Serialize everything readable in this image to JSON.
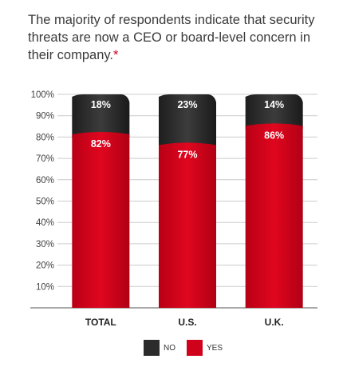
{
  "title": "The majority of respondents indicate that security threats are now a CEO or board-level concern in their company.",
  "title_mark": "*",
  "chart_data": {
    "type": "bar",
    "stacked": true,
    "categories": [
      "TOTAL",
      "U.S.",
      "U.K."
    ],
    "series": [
      {
        "name": "YES",
        "values": [
          82,
          77,
          86
        ],
        "color": "#d0021b"
      },
      {
        "name": "NO",
        "values": [
          18,
          23,
          14
        ],
        "color": "#2b2b2b"
      }
    ],
    "data_labels": {
      "YES": [
        "82%",
        "77%",
        "86%"
      ],
      "NO": [
        "18%",
        "23%",
        "14%"
      ]
    },
    "ylim": [
      0,
      100
    ],
    "yticks": [
      10,
      20,
      30,
      40,
      50,
      60,
      70,
      80,
      90,
      100
    ],
    "ytick_labels": [
      "10%",
      "20%",
      "30%",
      "40%",
      "50%",
      "60%",
      "70%",
      "80%",
      "90%",
      "100%"
    ],
    "grid": true,
    "legend_position": "bottom"
  },
  "legend": [
    {
      "label": "NO",
      "color": "#2b2b2b"
    },
    {
      "label": "YES",
      "color": "#d0021b"
    }
  ]
}
